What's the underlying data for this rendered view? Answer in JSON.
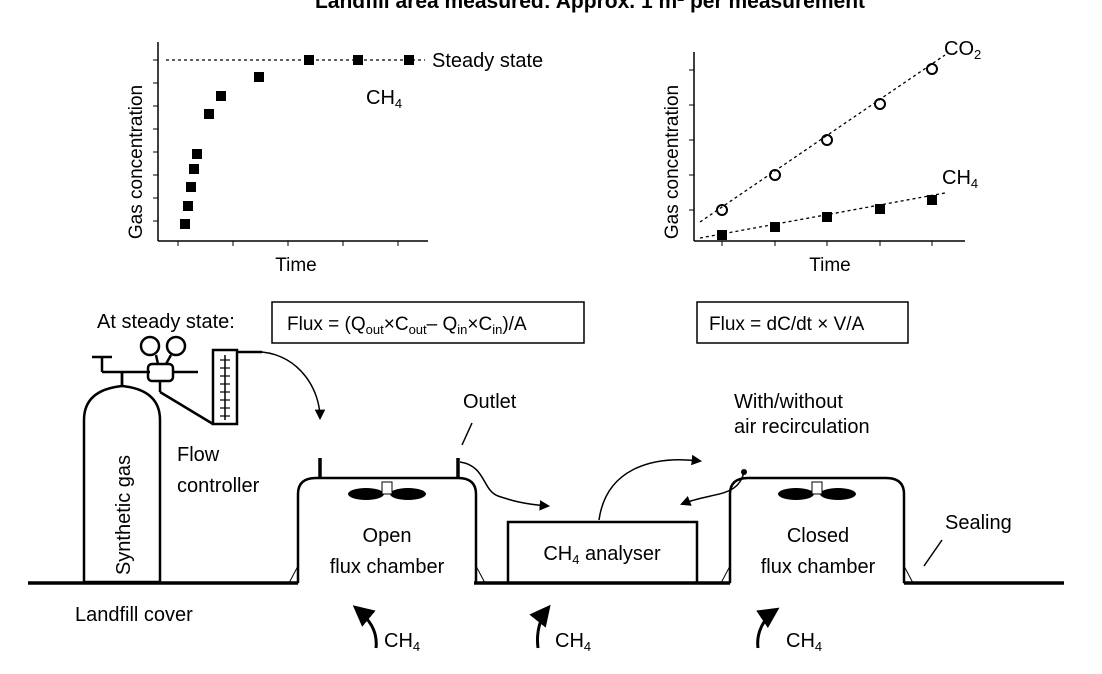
{
  "title": "Landfill area measured: Approx. 1 m² per measurement",
  "chart_left": {
    "xlabel": "Time",
    "ylabel": "Gas concentration",
    "steady_state_label": "Steady state",
    "series_label": "CH4",
    "series_label_main": "CH",
    "series_label_sub": "4"
  },
  "chart_right": {
    "xlabel": "Time",
    "ylabel": "Gas concentration",
    "co2_label_main": "CO",
    "co2_label_sub": "2",
    "ch4_label_main": "CH",
    "ch4_label_sub": "4"
  },
  "steady_state_caption": "At steady state:",
  "formula_open": {
    "prefix": "Flux = (Q",
    "sub1": "out",
    "t1": "×C",
    "sub2": "out",
    "t2": "– Q",
    "sub3": "in",
    "t3": "×C",
    "sub4": "in",
    "suffix": ")/A"
  },
  "formula_closed": "Flux = dC/dt × V/A",
  "labels": {
    "synthetic_gas": "Synthetic gas",
    "flow_controller_1": "Flow",
    "flow_controller_2": "controller",
    "outlet": "Outlet",
    "recirc_1": "With/without",
    "recirc_2": "air recirculation",
    "open_chamber_1": "Open",
    "open_chamber_2": "flux chamber",
    "analyser_main": "CH",
    "analyser_sub": "4",
    "analyser_rest": " analyser",
    "closed_chamber_1": "Closed",
    "closed_chamber_2": "flux chamber",
    "sealing": "Sealing",
    "landfill_cover": "Landfill cover",
    "ch4_main": "CH",
    "ch4_sub": "4"
  }
}
